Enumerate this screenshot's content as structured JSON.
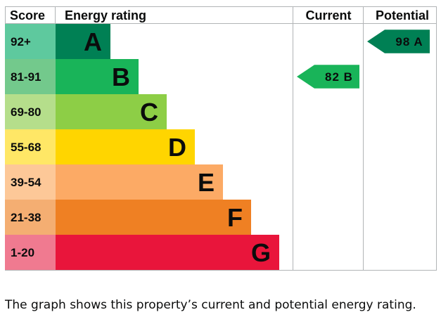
{
  "chart_data": {
    "type": "bar",
    "title": "",
    "columns": {
      "score": "Score",
      "rating": "Energy rating",
      "current": "Current",
      "potential": "Potential"
    },
    "bands": [
      {
        "letter": "A",
        "range": "92+",
        "color": "#008054",
        "score_color": "#5ec99e"
      },
      {
        "letter": "B",
        "range": "81-91",
        "color": "#19b459",
        "score_color": "#73c98c"
      },
      {
        "letter": "C",
        "range": "69-80",
        "color": "#8dce46",
        "score_color": "#b5de8b"
      },
      {
        "letter": "D",
        "range": "55-68",
        "color": "#ffd500",
        "score_color": "#ffe766"
      },
      {
        "letter": "E",
        "range": "39-54",
        "color": "#fcaa65",
        "score_color": "#fdc898"
      },
      {
        "letter": "F",
        "range": "21-38",
        "color": "#ef8023",
        "score_color": "#f4ae72"
      },
      {
        "letter": "G",
        "range": "1-20",
        "color": "#e9153b",
        "score_color": "#f07a90"
      }
    ],
    "current": {
      "value": 82,
      "band": "B",
      "label": "82 B"
    },
    "potential": {
      "value": 98,
      "band": "A",
      "label": "98 A"
    }
  },
  "caption": "The graph shows this property’s current and potential energy rating."
}
